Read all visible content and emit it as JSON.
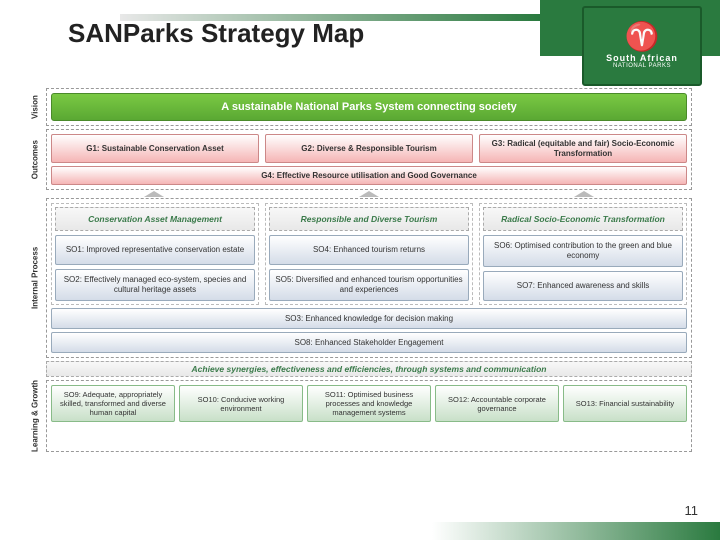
{
  "title": "SANParks Strategy Map",
  "page_number": "11",
  "logo": {
    "org_top": "South African",
    "org_bottom": "NATIONAL PARKS"
  },
  "colors": {
    "brand_green": "#2a7a3f",
    "vision_grad_top": "#7ac943",
    "vision_grad_bot": "#5aa833",
    "goal_grad_bot": "#f5b5b5",
    "so_grad_bot": "#d4dce8",
    "lg_grad_bot": "#c8e0c8"
  },
  "row_labels": {
    "vision": "Vision",
    "outcomes": "Outcomes",
    "internal": "Internal Process",
    "learning": "Learning & Growth"
  },
  "vision": "A sustainable National Parks System connecting society",
  "goals_top": [
    "G1: Sustainable Conservation Asset",
    "G2: Diverse & Responsible Tourism",
    "G3: Radical (equitable and fair) Socio-Economic Transformation"
  ],
  "goal_full": "G4: Effective Resource utilisation and Good Governance",
  "pillars": [
    "Conservation Asset Management",
    "Responsible and Diverse Tourism",
    "Radical Socio-Economic Transformation"
  ],
  "so_cols": [
    [
      "SO1: Improved representative conservation estate",
      "SO2: Effectively managed eco-system, species and cultural heritage assets"
    ],
    [
      "SO4: Enhanced tourism returns",
      "SO5: Diversified and enhanced tourism opportunities and experiences"
    ],
    [
      "SO6: Optimised contribution to the green and blue economy",
      "SO7: Enhanced awareness and skills"
    ]
  ],
  "so_full1": "SO3: Enhanced knowledge for decision making",
  "so_full2": "SO8: Enhanced Stakeholder Engagement",
  "synergy": "Achieve synergies, effectiveness and efficiencies, through systems and communication",
  "lg": [
    "SO9: Adequate, appropriately skilled, transformed and diverse human capital",
    "SO10: Conducive working environment",
    "SO11: Optimised business processes and knowledge management systems",
    "SO12: Accountable corporate governance",
    "SO13: Financial sustainability"
  ]
}
